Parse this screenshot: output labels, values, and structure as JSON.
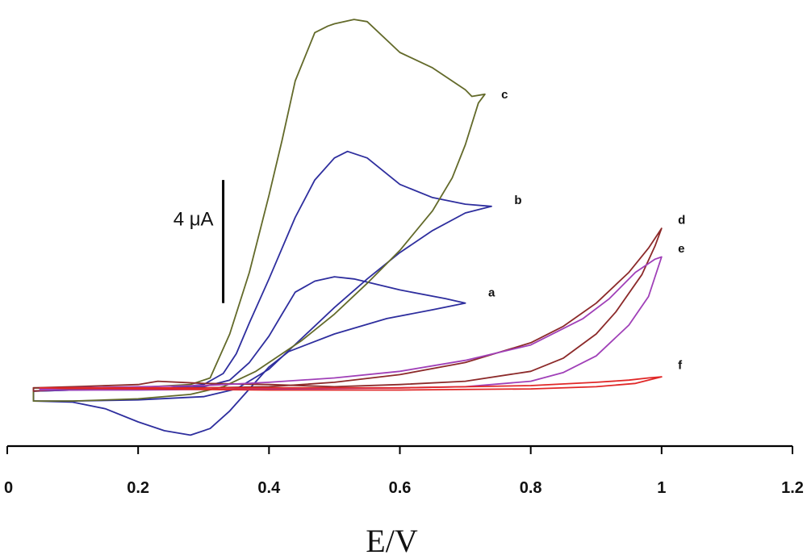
{
  "chart_data": {
    "type": "line",
    "title": "",
    "xlabel": "E/V",
    "ylabel": "",
    "xlim": [
      0,
      1.2
    ],
    "ylim": [
      -2.6,
      17.5
    ],
    "x_ticks": [
      "0",
      "0.2",
      "0.4",
      "0.6",
      "0.8",
      "1",
      "1.2"
    ],
    "x_tick_values": [
      0,
      0.2,
      0.4,
      0.6,
      0.8,
      1.0,
      1.2
    ],
    "grid": false,
    "legend": "none",
    "scale_bar": {
      "label": "4 μA",
      "value": 4,
      "x": 0.33,
      "y_from": 3.9,
      "y_to": 9.5
    },
    "series": [
      {
        "name": "a",
        "color": "#2e2e9e",
        "label_pos": [
          0.735,
          4.2
        ],
        "points": [
          [
            0.04,
            -0.55
          ],
          [
            0.1,
            -0.6
          ],
          [
            0.15,
            -0.9
          ],
          [
            0.2,
            -1.5
          ],
          [
            0.24,
            -1.9
          ],
          [
            0.28,
            -2.1
          ],
          [
            0.31,
            -1.8
          ],
          [
            0.34,
            -1.0
          ],
          [
            0.37,
            0.0
          ],
          [
            0.4,
            1.0
          ],
          [
            0.43,
            1.7
          ],
          [
            0.5,
            2.5
          ],
          [
            0.58,
            3.2
          ],
          [
            0.65,
            3.6
          ],
          [
            0.7,
            3.9
          ],
          [
            0.67,
            4.1
          ],
          [
            0.6,
            4.5
          ],
          [
            0.53,
            5.0
          ],
          [
            0.5,
            5.1
          ],
          [
            0.47,
            4.9
          ],
          [
            0.44,
            4.4
          ],
          [
            0.42,
            3.4
          ],
          [
            0.4,
            2.4
          ],
          [
            0.37,
            1.2
          ],
          [
            0.34,
            0.4
          ],
          [
            0.3,
            0.1
          ],
          [
            0.22,
            0.0
          ],
          [
            0.1,
            -0.05
          ],
          [
            0.04,
            -0.1
          ]
        ]
      },
      {
        "name": "b",
        "color": "#2e2e9e",
        "label_pos": [
          0.775,
          8.4
        ],
        "points": [
          [
            0.04,
            -0.55
          ],
          [
            0.1,
            -0.55
          ],
          [
            0.2,
            -0.5
          ],
          [
            0.3,
            -0.35
          ],
          [
            0.35,
            0.0
          ],
          [
            0.4,
            0.9
          ],
          [
            0.45,
            2.3
          ],
          [
            0.5,
            3.7
          ],
          [
            0.55,
            5.0
          ],
          [
            0.6,
            6.2
          ],
          [
            0.65,
            7.2
          ],
          [
            0.7,
            8.0
          ],
          [
            0.74,
            8.3
          ],
          [
            0.7,
            8.4
          ],
          [
            0.65,
            8.7
          ],
          [
            0.6,
            9.3
          ],
          [
            0.55,
            10.5
          ],
          [
            0.52,
            10.8
          ],
          [
            0.5,
            10.5
          ],
          [
            0.47,
            9.5
          ],
          [
            0.44,
            7.8
          ],
          [
            0.4,
            5.0
          ],
          [
            0.37,
            3.0
          ],
          [
            0.35,
            1.6
          ],
          [
            0.33,
            0.7
          ],
          [
            0.3,
            0.2
          ],
          [
            0.25,
            0.05
          ],
          [
            0.2,
            0.0
          ],
          [
            0.1,
            -0.05
          ],
          [
            0.04,
            -0.1
          ]
        ]
      },
      {
        "name": "c",
        "color": "#636a2a",
        "label_pos": [
          0.755,
          13.2
        ],
        "points": [
          [
            0.04,
            -0.55
          ],
          [
            0.1,
            -0.55
          ],
          [
            0.2,
            -0.45
          ],
          [
            0.28,
            -0.25
          ],
          [
            0.33,
            0.1
          ],
          [
            0.38,
            0.8
          ],
          [
            0.45,
            2.2
          ],
          [
            0.5,
            3.4
          ],
          [
            0.55,
            4.8
          ],
          [
            0.6,
            6.3
          ],
          [
            0.65,
            8.1
          ],
          [
            0.68,
            9.6
          ],
          [
            0.7,
            11.1
          ],
          [
            0.72,
            13.0
          ],
          [
            0.73,
            13.4
          ],
          [
            0.71,
            13.3
          ],
          [
            0.7,
            13.6
          ],
          [
            0.65,
            14.6
          ],
          [
            0.6,
            15.3
          ],
          [
            0.55,
            16.7
          ],
          [
            0.53,
            16.8
          ],
          [
            0.5,
            16.6
          ],
          [
            0.49,
            16.5
          ],
          [
            0.47,
            16.2
          ],
          [
            0.44,
            14.0
          ],
          [
            0.42,
            11.3
          ],
          [
            0.4,
            8.8
          ],
          [
            0.37,
            5.3
          ],
          [
            0.34,
            2.5
          ],
          [
            0.31,
            0.5
          ],
          [
            0.28,
            0.2
          ],
          [
            0.22,
            0.1
          ],
          [
            0.1,
            0.0
          ],
          [
            0.04,
            0.05
          ]
        ]
      },
      {
        "name": "d",
        "color": "#8c2a2a",
        "label_pos": [
          1.025,
          7.5
        ],
        "points": [
          [
            0.04,
            -0.1
          ],
          [
            0.1,
            0.0
          ],
          [
            0.2,
            0.0
          ],
          [
            0.3,
            0.05
          ],
          [
            0.4,
            0.1
          ],
          [
            0.5,
            0.3
          ],
          [
            0.6,
            0.65
          ],
          [
            0.7,
            1.2
          ],
          [
            0.8,
            2.1
          ],
          [
            0.85,
            2.85
          ],
          [
            0.9,
            3.9
          ],
          [
            0.95,
            5.3
          ],
          [
            0.98,
            6.4
          ],
          [
            1.0,
            7.3
          ],
          [
            0.99,
            6.5
          ],
          [
            0.97,
            5.2
          ],
          [
            0.93,
            3.5
          ],
          [
            0.9,
            2.5
          ],
          [
            0.85,
            1.4
          ],
          [
            0.8,
            0.8
          ],
          [
            0.7,
            0.35
          ],
          [
            0.6,
            0.2
          ],
          [
            0.5,
            0.1
          ],
          [
            0.4,
            0.2
          ],
          [
            0.3,
            0.25
          ],
          [
            0.23,
            0.35
          ],
          [
            0.2,
            0.2
          ],
          [
            0.1,
            0.1
          ],
          [
            0.04,
            0.05
          ]
        ]
      },
      {
        "name": "e",
        "color": "#a040b8",
        "label_pos": [
          1.025,
          6.2
        ],
        "points": [
          [
            0.05,
            -0.05
          ],
          [
            0.2,
            -0.05
          ],
          [
            0.4,
            0.0
          ],
          [
            0.6,
            0.05
          ],
          [
            0.7,
            0.1
          ],
          [
            0.8,
            0.35
          ],
          [
            0.85,
            0.75
          ],
          [
            0.9,
            1.5
          ],
          [
            0.95,
            2.9
          ],
          [
            0.98,
            4.2
          ],
          [
            1.0,
            6.0
          ],
          [
            0.99,
            5.9
          ],
          [
            0.96,
            5.3
          ],
          [
            0.92,
            4.1
          ],
          [
            0.88,
            3.2
          ],
          [
            0.8,
            2.0
          ],
          [
            0.7,
            1.3
          ],
          [
            0.6,
            0.8
          ],
          [
            0.5,
            0.5
          ],
          [
            0.4,
            0.3
          ],
          [
            0.3,
            0.15
          ],
          [
            0.2,
            0.1
          ],
          [
            0.1,
            0.05
          ],
          [
            0.05,
            0.0
          ]
        ]
      },
      {
        "name": "f",
        "color": "#e02828",
        "label_pos": [
          1.025,
          0.9
        ],
        "points": [
          [
            0.05,
            0.05
          ],
          [
            0.2,
            0.0
          ],
          [
            0.4,
            -0.05
          ],
          [
            0.6,
            -0.05
          ],
          [
            0.8,
            0.0
          ],
          [
            0.9,
            0.1
          ],
          [
            0.96,
            0.25
          ],
          [
            1.0,
            0.55
          ],
          [
            0.98,
            0.5
          ],
          [
            0.95,
            0.4
          ],
          [
            0.9,
            0.3
          ],
          [
            0.8,
            0.15
          ],
          [
            0.6,
            0.05
          ],
          [
            0.4,
            0.05
          ],
          [
            0.2,
            0.05
          ],
          [
            0.05,
            0.05
          ]
        ]
      }
    ]
  }
}
